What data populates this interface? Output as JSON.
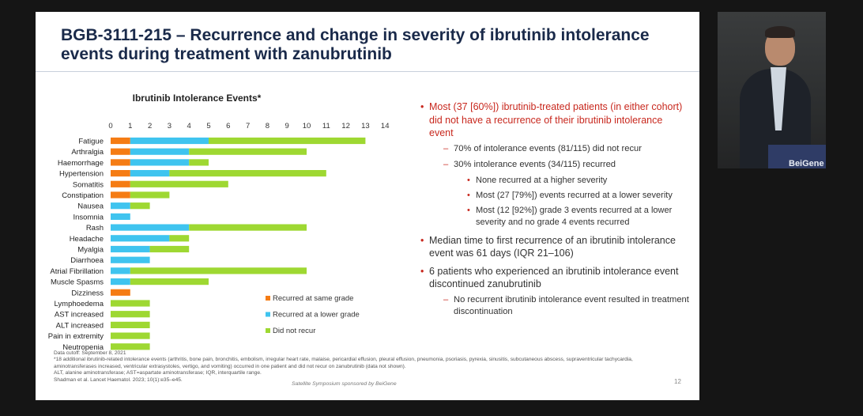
{
  "slide": {
    "title": "BGB-3111-215 – Recurrence and change in severity of ibrutinib intolerance events during treatment with zanubrutinib",
    "page_number": "12",
    "sponsor": "Satellite Symposium sponsored by BeiGene"
  },
  "chart_data": {
    "type": "bar",
    "orientation": "horizontal",
    "stacked": true,
    "title": "Ibrutinib Intolerance Events*",
    "xlim": [
      0,
      14
    ],
    "x_ticks": [
      "0",
      "1",
      "2",
      "3",
      "4",
      "5",
      "6",
      "7",
      "8",
      "9",
      "10",
      "11",
      "12",
      "13",
      "14"
    ],
    "categories": [
      "Fatigue",
      "Arthralgia",
      "Haemorrhage",
      "Hypertension",
      "Somatitis",
      "Constipation",
      "Nausea",
      "Insomnia",
      "Rash",
      "Headache",
      "Myalgia",
      "Diarrhoea",
      "Atrial Fibrillation",
      "Muscle Spasms",
      "Dizziness",
      "Lymphoedema",
      "AST increased",
      "ALT increased",
      "Pain in extremity",
      "Neutropenia"
    ],
    "series": [
      {
        "name": "Recurred at same grade",
        "color": "#f57c14",
        "values": [
          1,
          1,
          1,
          1,
          1,
          1,
          0,
          0,
          0,
          0,
          0,
          0,
          0,
          0,
          1,
          0,
          0,
          0,
          0,
          0
        ]
      },
      {
        "name": "Recurred at a lower grade",
        "color": "#3fc4ef",
        "values": [
          4,
          3,
          3,
          2,
          0,
          0,
          1,
          1,
          4,
          3,
          2,
          2,
          1,
          1,
          0,
          0,
          0,
          0,
          0,
          0
        ]
      },
      {
        "name": "Did not recur",
        "color": "#9ed832",
        "values": [
          8,
          6,
          1,
          8,
          5,
          2,
          1,
          0,
          6,
          1,
          2,
          0,
          9,
          4,
          0,
          2,
          2,
          2,
          2,
          2
        ]
      }
    ],
    "legend_position": "bottom-right"
  },
  "bullets": {
    "b1": "Most (37 [60%]) ibrutinib-treated patients (in either cohort) did not have a recurrence of their ibrutinib intolerance event",
    "b1_1": "70% of intolerance events (81/115) did not recur",
    "b1_2": "30% intolerance events (34/115) recurred",
    "b1_2_1": "None recurred at a higher severity",
    "b1_2_2": "Most (27 [79%]) events recurred at a lower severity",
    "b1_2_3": "Most (12 [92%]) grade 3 events recurred at a lower severity and no grade 4 events recurred",
    "b2": "Median time to first recurrence of an ibrutinib intolerance event was 61 days (IQR 21–106)",
    "b3": "6 patients who experienced an ibrutinib intolerance event discontinued zanubrutinib",
    "b3_1": "No recurrent ibrutinib intolerance event resulted in treatment discontinuation",
    "bullet_char": "•",
    "dash_char": "–"
  },
  "footnotes": {
    "cutoff": "Data cutoff: September 8, 2021",
    "note": "*18 additional ibrutinib-related intolerance events (arthritis, bone pain, bronchitis, embolism, irregular heart rate, malaise, pericardial effusion, pleural effusion, pneumonia, psoriasis, pyrexia, sinusitis, subcutaneous abscess, supraventricular tachycardia, aminotransferases increased, ventricular extrasystoles, vertigo, and vomiting) occurred in one patient and did not recur on zanubrutinib (data not shown).",
    "abbrev": "ALT, alanine aminotransferase; AST=aspartate aminotransferase; IQR, interquartile range.",
    "ref": "Shadman et al. Lancet Haematol. 2023; 10(1):e35–e45."
  },
  "video": {
    "logo": "BeiGene"
  },
  "colors": {
    "title": "#1a2a4a",
    "accent_red": "#c8281e"
  }
}
